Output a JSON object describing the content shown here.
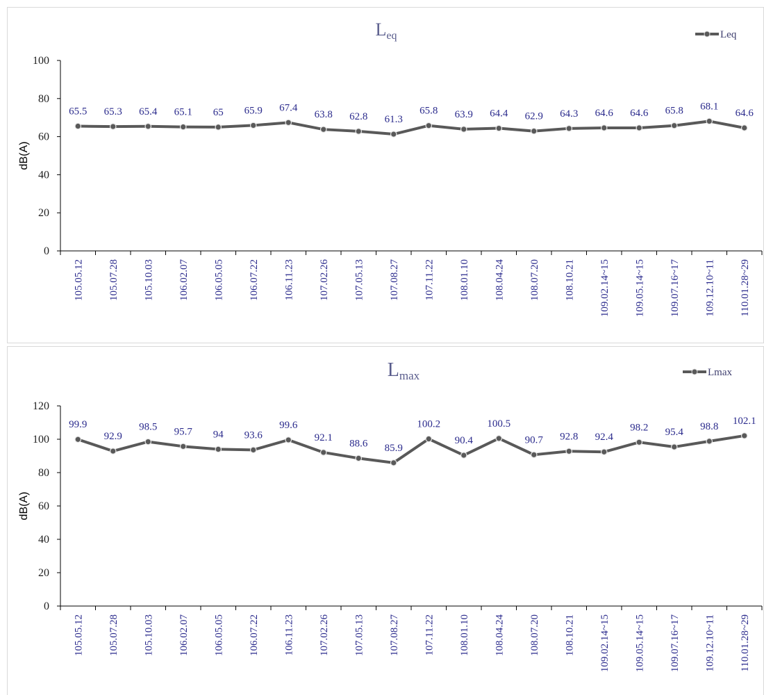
{
  "chart_data": [
    {
      "type": "line",
      "title": "L",
      "title_sub": "eq",
      "ylabel": "dB(A)",
      "ylim": [
        0,
        100
      ],
      "yticks": [
        0,
        20,
        40,
        60,
        80,
        100
      ],
      "legend": "top-right",
      "grid": false,
      "categories": [
        "105.05.12",
        "105.07.28",
        "105.10.03",
        "106.02.07",
        "106.05.05",
        "106.07.22",
        "106.11.23",
        "107.02.26",
        "107.05.13",
        "107.08.27",
        "107.11.22",
        "108.01.10",
        "108.04.24",
        "108.07.20",
        "108.10.21",
        "109.02.14~15",
        "109.05.14~15",
        "109.07.16~17",
        "109.12.10~11",
        "110.01.28~29"
      ],
      "series": [
        {
          "name": "Leq",
          "color": "#595959",
          "values": [
            65.5,
            65.3,
            65.4,
            65.1,
            65,
            65.9,
            67.4,
            63.8,
            62.8,
            61.3,
            65.8,
            63.9,
            64.4,
            62.9,
            64.3,
            64.6,
            64.6,
            65.8,
            68.1,
            64.6
          ]
        }
      ]
    },
    {
      "type": "line",
      "title": "L",
      "title_sub": "max",
      "ylabel": "dB(A)",
      "ylim": [
        0,
        120
      ],
      "yticks": [
        0,
        20,
        40,
        60,
        80,
        100,
        120
      ],
      "legend": "top-right",
      "grid": false,
      "categories": [
        "105.05.12",
        "105.07.28",
        "105.10.03",
        "106.02.07",
        "106.05.05",
        "106.07.22",
        "106.11.23",
        "107.02.26",
        "107.05.13",
        "107.08.27",
        "107.11.22",
        "108.01.10",
        "108.04.24",
        "108.07.20",
        "108.10.21",
        "109.02.14~15",
        "109.05.14~15",
        "109.07.16~17",
        "109.12.10~11",
        "110.01.28~29"
      ],
      "series": [
        {
          "name": "Lmax",
          "color": "#595959",
          "values": [
            99.9,
            92.9,
            98.5,
            95.7,
            94,
            93.6,
            99.6,
            92.1,
            88.6,
            85.9,
            100.2,
            90.4,
            100.5,
            90.7,
            92.8,
            92.4,
            98.2,
            95.4,
            98.8,
            102.1
          ]
        }
      ]
    }
  ]
}
